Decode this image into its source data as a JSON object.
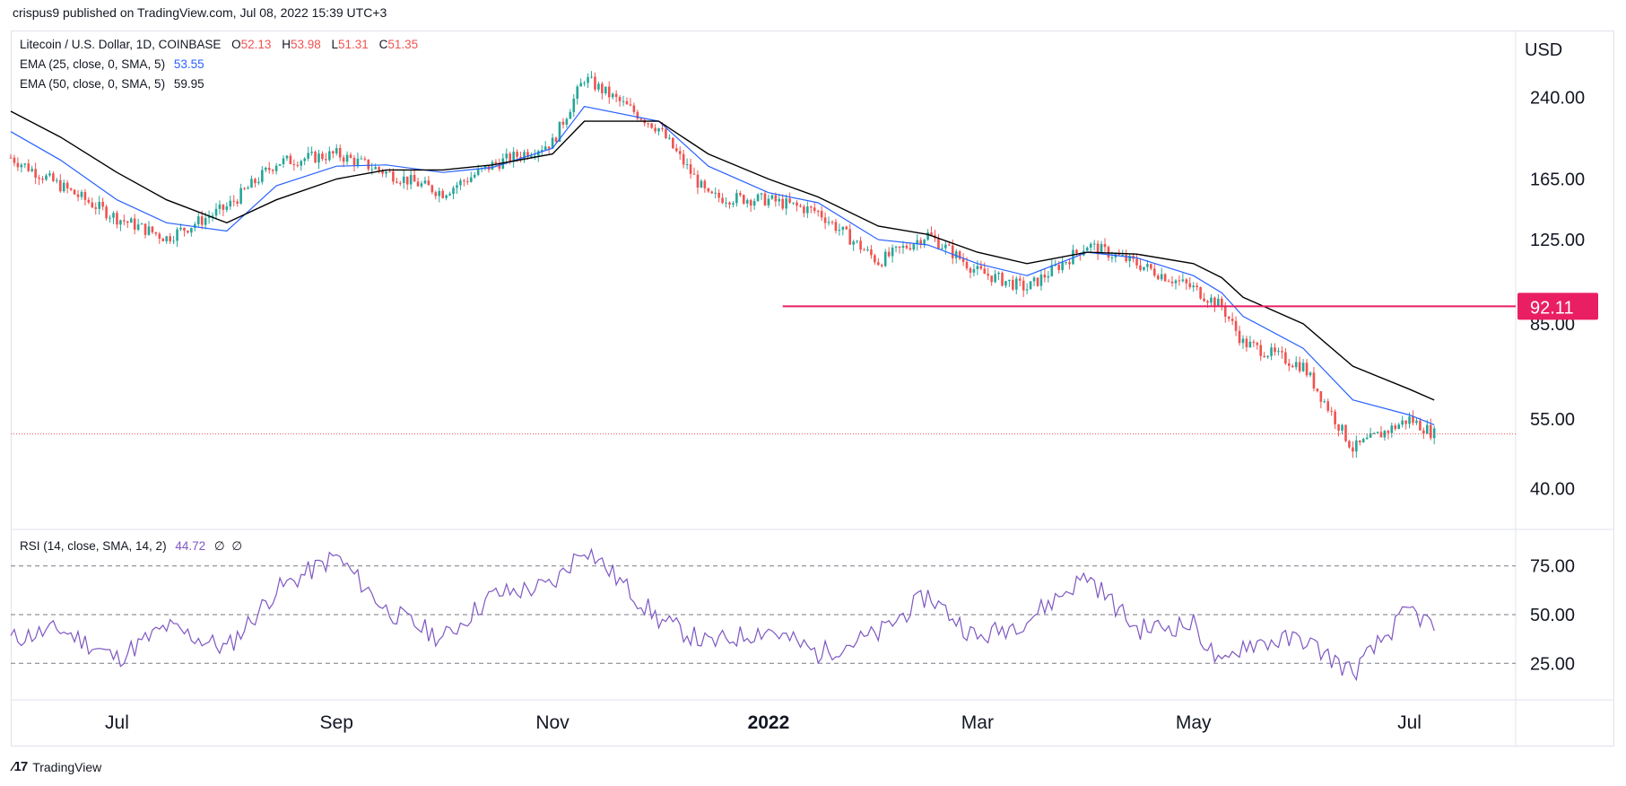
{
  "header": {
    "published": "crispus9 published on TradingView.com, Jul 08, 2022 15:39 UTC+3"
  },
  "legend": {
    "symbol": "Litecoin / U.S. Dollar, 1D, COINBASE",
    "o_label": "O",
    "o": "52.13",
    "h_label": "H",
    "h": "53.98",
    "l_label": "L",
    "l": "51.31",
    "c_label": "C",
    "c": "51.35",
    "ema25_label": "EMA (25, close, 0, SMA, 5)",
    "ema25": "53.55",
    "ema50_label": "EMA (50, close, 0, SMA, 5)",
    "ema50": "59.95",
    "rsi_label": "RSI (14, close, SMA, 14, 2)",
    "rsi": "44.72",
    "rsi_extra1": "∅",
    "rsi_extra2": "∅"
  },
  "axis": {
    "currency": "USD",
    "price_ticks": [
      "240.00",
      "165.00",
      "125.00",
      "85.00",
      "55.00",
      "40.00"
    ],
    "rsi_ticks": [
      "75.00",
      "50.00",
      "25.00"
    ],
    "hline_label": "92.11",
    "x_ticks": [
      "Jul",
      "Sep",
      "Nov",
      "2022",
      "Mar",
      "May",
      "Jul"
    ]
  },
  "colors": {
    "up": "#26a69a",
    "down": "#ef5350",
    "ema25": "#2962ff",
    "ema50": "#000000",
    "rsi": "#7e57c2",
    "hline": "#e91e63"
  },
  "footer": {
    "brand": "TradingView"
  },
  "chart_data": {
    "type": "line",
    "title": "Litecoin / U.S. Dollar, 1D, COINBASE",
    "scale": "log",
    "x": [
      "2021-06-01",
      "2021-06-15",
      "2021-07-01",
      "2021-07-15",
      "2021-08-01",
      "2021-08-15",
      "2021-09-01",
      "2021-09-15",
      "2021-10-01",
      "2021-10-15",
      "2021-11-01",
      "2021-11-10",
      "2021-12-01",
      "2021-12-15",
      "2022-01-01",
      "2022-01-15",
      "2022-02-01",
      "2022-02-15",
      "2022-03-01",
      "2022-03-15",
      "2022-04-01",
      "2022-04-15",
      "2022-05-01",
      "2022-05-09",
      "2022-05-15",
      "2022-06-01",
      "2022-06-15",
      "2022-07-01",
      "2022-07-08"
    ],
    "series": [
      {
        "name": "Close",
        "values": [
          182,
          160,
          138,
          126,
          145,
          178,
          185,
          170,
          155,
          176,
          195,
          262,
          208,
          152,
          150,
          142,
          113,
          128,
          108,
          100,
          122,
          112,
          100,
          92,
          78,
          70,
          48,
          55,
          51.35
        ]
      },
      {
        "name": "EMA (25, close, 0, SMA, 5)",
        "values": [
          205,
          180,
          150,
          135,
          130,
          160,
          175,
          176,
          170,
          174,
          190,
          230,
          215,
          175,
          155,
          148,
          125,
          122,
          112,
          106,
          118,
          115,
          106,
          98,
          88,
          76,
          60,
          56,
          53.55
        ]
      },
      {
        "name": "EMA (50, close, 0, SMA, 5)",
        "values": [
          225,
          200,
          170,
          150,
          135,
          150,
          165,
          172,
          172,
          176,
          185,
          215,
          215,
          185,
          165,
          152,
          133,
          128,
          118,
          112,
          118,
          117,
          112,
          105,
          96,
          85,
          70,
          63,
          59.95
        ]
      }
    ],
    "horizontal_line": 92.11,
    "last_price": 51.35,
    "ylim": [
      36,
      300
    ],
    "rsi": {
      "x": [
        "2021-06-01",
        "2021-06-15",
        "2021-07-01",
        "2021-07-15",
        "2021-08-01",
        "2021-08-15",
        "2021-09-01",
        "2021-09-15",
        "2021-10-01",
        "2021-10-15",
        "2021-11-01",
        "2021-11-10",
        "2021-12-01",
        "2021-12-15",
        "2022-01-01",
        "2022-01-15",
        "2022-02-01",
        "2022-02-15",
        "2022-03-01",
        "2022-03-15",
        "2022-04-01",
        "2022-04-15",
        "2022-05-01",
        "2022-05-09",
        "2022-05-15",
        "2022-06-01",
        "2022-06-15",
        "2022-07-01",
        "2022-07-08"
      ],
      "values": [
        40,
        44,
        32,
        45,
        36,
        60,
        74,
        52,
        40,
        58,
        62,
        78,
        48,
        38,
        44,
        34,
        42,
        58,
        40,
        48,
        66,
        44,
        46,
        28,
        38,
        40,
        26,
        52,
        44.72
      ],
      "levels": [
        70,
        50,
        30
      ],
      "ylim": [
        15,
        85
      ]
    }
  }
}
